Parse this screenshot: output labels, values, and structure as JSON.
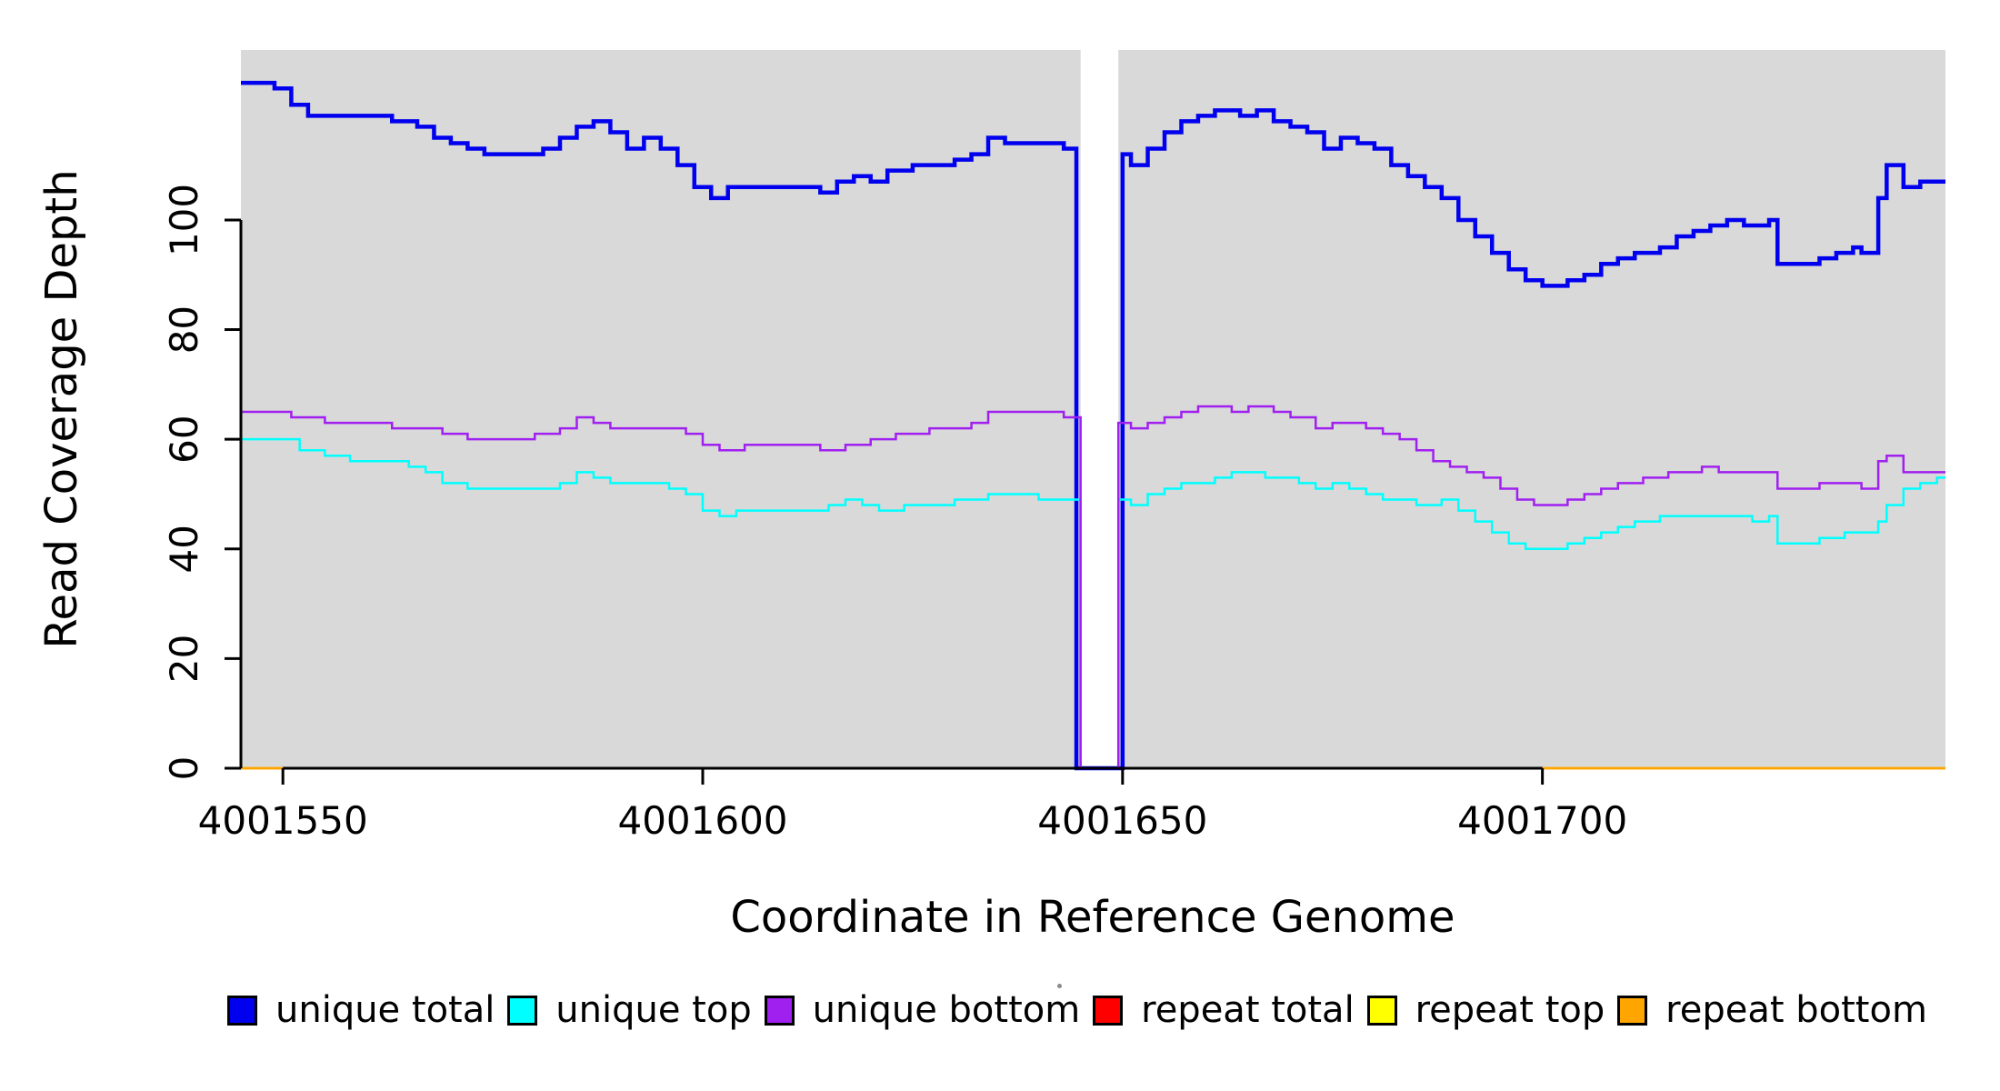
{
  "figure": {
    "y_axis_label": "Read Coverage Depth",
    "x_axis_label": "Coordinate in Reference Genome"
  },
  "legend": {
    "items": [
      {
        "label": "unique total",
        "color": "#0000ee"
      },
      {
        "label": "unique top",
        "color": "#00ffff"
      },
      {
        "label": "unique bottom",
        "color": "#a020f0"
      },
      {
        "label": "repeat total",
        "color": "#ff0000"
      },
      {
        "label": "repeat top",
        "color": "#ffff00"
      },
      {
        "label": "repeat bottom",
        "color": "#ffa500"
      }
    ]
  },
  "chart_data": {
    "type": "line",
    "subtype": "step",
    "title": "",
    "xlabel": "Coordinate in Reference Genome",
    "ylabel": "Read Coverage Depth",
    "xlim": [
      4001545,
      4001748
    ],
    "ylim": [
      0,
      131
    ],
    "x_ticks": [
      4001550,
      4001600,
      4001650,
      4001700
    ],
    "y_ticks": [
      0,
      20,
      40,
      60,
      80,
      100
    ],
    "grid": false,
    "legend_position": "bottom",
    "plot_bg": "#d9d9d9",
    "gap_region": {
      "x0": 4001645,
      "x1": 4001649.5,
      "color": "#ffffff"
    },
    "series": [
      {
        "name": "unique total",
        "color": "#0000ee",
        "width": 4.5,
        "points": [
          [
            4001545,
            125
          ],
          [
            4001549,
            124
          ],
          [
            4001551,
            121
          ],
          [
            4001553,
            119
          ],
          [
            4001560,
            119
          ],
          [
            4001563,
            118
          ],
          [
            4001566,
            117
          ],
          [
            4001568,
            115
          ],
          [
            4001570,
            114
          ],
          [
            4001572,
            113
          ],
          [
            4001574,
            112
          ],
          [
            4001579,
            112
          ],
          [
            4001581,
            113
          ],
          [
            4001583,
            115
          ],
          [
            4001585,
            117
          ],
          [
            4001587,
            118
          ],
          [
            4001589,
            116
          ],
          [
            4001591,
            113
          ],
          [
            4001593,
            115
          ],
          [
            4001595,
            113
          ],
          [
            4001597,
            110
          ],
          [
            4001599,
            106
          ],
          [
            4001601,
            104
          ],
          [
            4001603,
            106
          ],
          [
            4001612,
            106
          ],
          [
            4001614,
            105
          ],
          [
            4001616,
            107
          ],
          [
            4001618,
            108
          ],
          [
            4001620,
            107
          ],
          [
            4001622,
            109
          ],
          [
            4001625,
            110
          ],
          [
            4001630,
            111
          ],
          [
            4001632,
            112
          ],
          [
            4001634,
            115
          ],
          [
            4001636,
            114
          ],
          [
            4001643,
            113
          ],
          [
            4001644.5,
            0
          ],
          [
            4001650,
            112
          ],
          [
            4001651,
            110
          ],
          [
            4001653,
            113
          ],
          [
            4001655,
            116
          ],
          [
            4001657,
            118
          ],
          [
            4001659,
            119
          ],
          [
            4001661,
            120
          ],
          [
            4001664,
            119
          ],
          [
            4001666,
            120
          ],
          [
            4001668,
            118
          ],
          [
            4001670,
            117
          ],
          [
            4001672,
            116
          ],
          [
            4001674,
            113
          ],
          [
            4001676,
            115
          ],
          [
            4001678,
            114
          ],
          [
            4001680,
            113
          ],
          [
            4001682,
            110
          ],
          [
            4001684,
            108
          ],
          [
            4001686,
            106
          ],
          [
            4001688,
            104
          ],
          [
            4001690,
            100
          ],
          [
            4001692,
            97
          ],
          [
            4001694,
            94
          ],
          [
            4001696,
            91
          ],
          [
            4001698,
            89
          ],
          [
            4001700,
            88
          ],
          [
            4001703,
            89
          ],
          [
            4001705,
            90
          ],
          [
            4001707,
            92
          ],
          [
            4001709,
            93
          ],
          [
            4001711,
            94
          ],
          [
            4001714,
            95
          ],
          [
            4001716,
            97
          ],
          [
            4001718,
            98
          ],
          [
            4001720,
            99
          ],
          [
            4001722,
            100
          ],
          [
            4001724,
            99
          ],
          [
            4001727,
            100
          ],
          [
            4001728,
            92
          ],
          [
            4001733,
            93
          ],
          [
            4001735,
            94
          ],
          [
            4001737,
            95
          ],
          [
            4001738,
            94
          ],
          [
            4001740,
            104
          ],
          [
            4001741,
            110
          ],
          [
            4001743,
            106
          ],
          [
            4001745,
            107
          ]
        ]
      },
      {
        "name": "unique top",
        "color": "#00ffff",
        "width": 2.5,
        "points": [
          [
            4001545,
            60
          ],
          [
            4001550,
            60
          ],
          [
            4001552,
            58
          ],
          [
            4001555,
            57
          ],
          [
            4001558,
            56
          ],
          [
            4001563,
            56
          ],
          [
            4001565,
            55
          ],
          [
            4001567,
            54
          ],
          [
            4001569,
            52
          ],
          [
            4001572,
            51
          ],
          [
            4001581,
            51
          ],
          [
            4001583,
            52
          ],
          [
            4001585,
            54
          ],
          [
            4001587,
            53
          ],
          [
            4001589,
            52
          ],
          [
            4001594,
            52
          ],
          [
            4001596,
            51
          ],
          [
            4001598,
            50
          ],
          [
            4001600,
            47
          ],
          [
            4001602,
            46
          ],
          [
            4001604,
            47
          ],
          [
            4001613,
            47
          ],
          [
            4001615,
            48
          ],
          [
            4001617,
            49
          ],
          [
            4001619,
            48
          ],
          [
            4001621,
            47
          ],
          [
            4001624,
            48
          ],
          [
            4001630,
            49
          ],
          [
            4001634,
            50
          ],
          [
            4001640,
            49
          ],
          [
            4001645,
            0
          ],
          [
            4001649.5,
            49
          ],
          [
            4001651,
            48
          ],
          [
            4001653,
            50
          ],
          [
            4001655,
            51
          ],
          [
            4001657,
            52
          ],
          [
            4001661,
            53
          ],
          [
            4001663,
            54
          ],
          [
            4001667,
            53
          ],
          [
            4001671,
            52
          ],
          [
            4001673,
            51
          ],
          [
            4001675,
            52
          ],
          [
            4001677,
            51
          ],
          [
            4001679,
            50
          ],
          [
            4001681,
            49
          ],
          [
            4001685,
            48
          ],
          [
            4001688,
            49
          ],
          [
            4001690,
            47
          ],
          [
            4001692,
            45
          ],
          [
            4001694,
            43
          ],
          [
            4001696,
            41
          ],
          [
            4001698,
            40
          ],
          [
            4001703,
            41
          ],
          [
            4001705,
            42
          ],
          [
            4001707,
            43
          ],
          [
            4001709,
            44
          ],
          [
            4001711,
            45
          ],
          [
            4001714,
            46
          ],
          [
            4001725,
            45
          ],
          [
            4001727,
            46
          ],
          [
            4001728,
            41
          ],
          [
            4001733,
            42
          ],
          [
            4001736,
            43
          ],
          [
            4001740,
            45
          ],
          [
            4001741,
            48
          ],
          [
            4001743,
            51
          ],
          [
            4001745,
            52
          ],
          [
            4001747,
            53
          ]
        ]
      },
      {
        "name": "unique bottom",
        "color": "#a020f0",
        "width": 2.5,
        "points": [
          [
            4001545,
            65
          ],
          [
            4001551,
            64
          ],
          [
            4001555,
            63
          ],
          [
            4001563,
            62
          ],
          [
            4001569,
            61
          ],
          [
            4001572,
            60
          ],
          [
            4001577,
            60
          ],
          [
            4001580,
            61
          ],
          [
            4001583,
            62
          ],
          [
            4001585,
            64
          ],
          [
            4001587,
            63
          ],
          [
            4001589,
            62
          ],
          [
            4001596,
            62
          ],
          [
            4001598,
            61
          ],
          [
            4001600,
            59
          ],
          [
            4001602,
            58
          ],
          [
            4001605,
            59
          ],
          [
            4001614,
            58
          ],
          [
            4001617,
            59
          ],
          [
            4001620,
            60
          ],
          [
            4001623,
            61
          ],
          [
            4001627,
            62
          ],
          [
            4001632,
            63
          ],
          [
            4001634,
            65
          ],
          [
            4001640,
            65
          ],
          [
            4001643,
            64
          ],
          [
            4001645,
            0
          ],
          [
            4001649.5,
            63
          ],
          [
            4001651,
            62
          ],
          [
            4001653,
            63
          ],
          [
            4001655,
            64
          ],
          [
            4001657,
            65
          ],
          [
            4001659,
            66
          ],
          [
            4001663,
            65
          ],
          [
            4001665,
            66
          ],
          [
            4001668,
            65
          ],
          [
            4001670,
            64
          ],
          [
            4001673,
            62
          ],
          [
            4001675,
            63
          ],
          [
            4001679,
            62
          ],
          [
            4001681,
            61
          ],
          [
            4001683,
            60
          ],
          [
            4001685,
            58
          ],
          [
            4001687,
            56
          ],
          [
            4001689,
            55
          ],
          [
            4001691,
            54
          ],
          [
            4001693,
            53
          ],
          [
            4001695,
            51
          ],
          [
            4001697,
            49
          ],
          [
            4001699,
            48
          ],
          [
            4001703,
            49
          ],
          [
            4001705,
            50
          ],
          [
            4001707,
            51
          ],
          [
            4001709,
            52
          ],
          [
            4001712,
            53
          ],
          [
            4001715,
            54
          ],
          [
            4001719,
            55
          ],
          [
            4001721,
            54
          ],
          [
            4001727,
            54
          ],
          [
            4001728,
            51
          ],
          [
            4001733,
            52
          ],
          [
            4001738,
            51
          ],
          [
            4001740,
            56
          ],
          [
            4001741,
            57
          ],
          [
            4001743,
            54
          ],
          [
            4001747,
            54
          ]
        ]
      },
      {
        "name": "repeat total",
        "color": "#ff0000",
        "width": 2.5,
        "points": [
          [
            4001545,
            0
          ],
          [
            4001748,
            0
          ]
        ]
      },
      {
        "name": "repeat top",
        "color": "#ffff00",
        "width": 2.5,
        "points": [
          [
            4001545,
            0
          ],
          [
            4001748,
            0
          ]
        ]
      },
      {
        "name": "repeat bottom",
        "color": "#ffa500",
        "width": 2.5,
        "points": [
          [
            4001545,
            0
          ],
          [
            4001748,
            0
          ]
        ]
      }
    ]
  }
}
